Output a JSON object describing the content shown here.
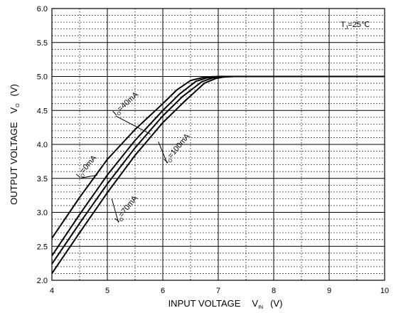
{
  "chart_data": {
    "type": "line",
    "xlabel": {
      "main": "INPUT VOLTAGE",
      "symbol": "V",
      "sub": "IN",
      "unit": "(V)"
    },
    "ylabel": {
      "main": "OUTPUT VOLTAGE",
      "symbol": "V",
      "sub": "O",
      "unit": "(V)"
    },
    "condition": {
      "symbol": "T",
      "sub": "J",
      "text": "=25℃"
    },
    "xlim": [
      4,
      10
    ],
    "ylim": [
      2.0,
      6.0
    ],
    "x_ticks": [
      "4",
      "5",
      "6",
      "7",
      "8",
      "9",
      "10"
    ],
    "y_ticks": [
      "2.0",
      "2.5",
      "3.0",
      "3.5",
      "4.0",
      "4.5",
      "5.0",
      "5.5",
      "6.0"
    ],
    "grid": true,
    "series": [
      {
        "name": "0mA",
        "label_prefix": "I",
        "label_sub": "O",
        "label_text": "=0mA",
        "x": [
          4.0,
          4.5,
          5.0,
          5.5,
          6.0,
          6.25,
          6.5,
          6.7,
          6.85,
          7.0,
          7.2,
          8.0,
          9.0,
          10.0
        ],
        "y": [
          2.62,
          3.22,
          3.78,
          4.22,
          4.6,
          4.8,
          4.94,
          4.98,
          4.995,
          5.0,
          5.0,
          5.0,
          5.0,
          5.0
        ]
      },
      {
        "name": "40mA",
        "label_prefix": "I",
        "label_sub": "O",
        "label_text": "=40mA",
        "x": [
          4.0,
          4.5,
          5.0,
          5.5,
          6.0,
          6.3,
          6.6,
          6.8,
          6.95,
          7.1,
          8.0,
          9.0,
          10.0
        ],
        "y": [
          2.36,
          2.97,
          3.55,
          4.06,
          4.5,
          4.74,
          4.93,
          4.98,
          4.995,
          5.0,
          5.0,
          5.0,
          5.0
        ]
      },
      {
        "name": "70mA",
        "label_prefix": "I",
        "label_sub": "O",
        "label_text": "=70mA",
        "x": [
          4.0,
          4.5,
          5.0,
          5.5,
          6.0,
          6.35,
          6.7,
          6.9,
          7.05,
          7.2,
          8.0,
          9.0,
          10.0
        ],
        "y": [
          2.24,
          2.84,
          3.42,
          3.95,
          4.42,
          4.7,
          4.92,
          4.98,
          4.995,
          5.0,
          5.0,
          5.0,
          5.0
        ]
      },
      {
        "name": "100mA",
        "label_prefix": "I",
        "label_sub": "O",
        "label_text": "=100mA",
        "x": [
          4.0,
          4.5,
          5.0,
          5.5,
          6.0,
          6.4,
          6.75,
          6.95,
          7.1,
          7.3,
          8.0,
          9.0,
          10.0
        ],
        "y": [
          2.1,
          2.7,
          3.29,
          3.84,
          4.32,
          4.64,
          4.9,
          4.97,
          4.993,
          5.0,
          5.0,
          5.0,
          5.0
        ]
      }
    ],
    "annotations": [
      {
        "series": "0mA",
        "text_x": 4.5,
        "text_y": 3.5,
        "rotate": -50,
        "point": [
          4.82,
          3.55
        ]
      },
      {
        "series": "40mA",
        "text_x": 5.15,
        "text_y": 4.42,
        "rotate": -42,
        "point": [
          5.78,
          4.15
        ]
      },
      {
        "series": "70mA",
        "text_x": 5.2,
        "text_y": 2.85,
        "rotate": -52,
        "point": [
          5.08,
          3.2
        ]
      },
      {
        "series": "100mA",
        "text_x": 6.08,
        "text_y": 3.72,
        "rotate": -50,
        "point": [
          5.92,
          4.04
        ]
      }
    ]
  }
}
